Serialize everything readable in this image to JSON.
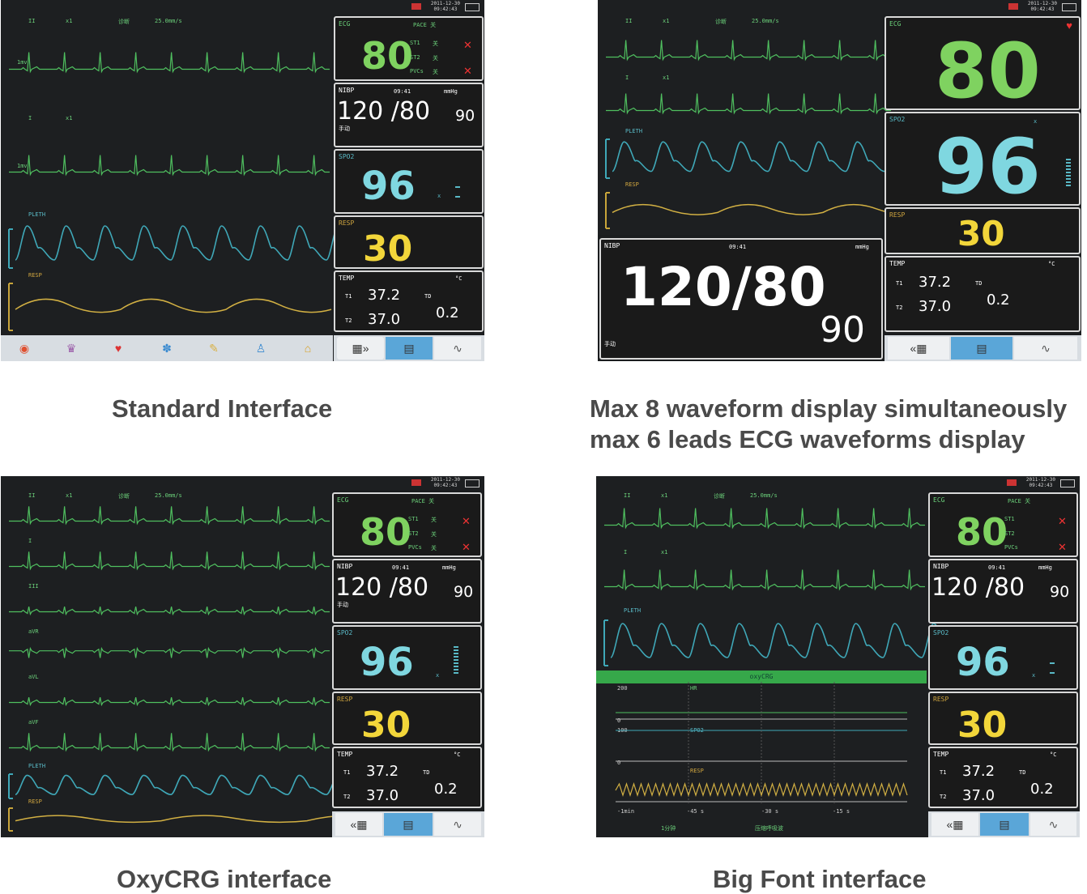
{
  "header": {
    "date": "2011-12-30",
    "time": "09:42:43"
  },
  "standard": {
    "wave_labels": [
      "II",
      "x1",
      "诊断",
      "25.0mm/s",
      "I",
      "x1",
      "PLETH",
      "RESP"
    ],
    "lead_scale": "1mv",
    "ecg": {
      "title": "ECG",
      "pace": "PACE 关",
      "hr": "80",
      "st1": "ST1",
      "st2": "ST2",
      "pvcs": "PVCs",
      "st1_val": "关",
      "st2_val": "关",
      "pvcs_val": "关"
    },
    "nibp": {
      "title": "NIBP",
      "time": "09:41",
      "unit": "mmHg",
      "sys_dia": "120 /80",
      "mean": "90",
      "mode": "手动"
    },
    "spo2": {
      "title": "SPO2",
      "value": "96",
      "pr": "x"
    },
    "resp": {
      "title": "RESP",
      "value": "30"
    },
    "temp": {
      "title": "TEMP",
      "unit": "°C",
      "t1_label": "T1",
      "t1": "37.2",
      "t2_label": "T2",
      "t2": "37.0",
      "td_label": "TD",
      "td": "0.2"
    }
  },
  "max8": {
    "big_hr": "80",
    "big_spo2": "96",
    "resp": "30",
    "nibp": "120/80",
    "mean": "90",
    "mode": "手动"
  },
  "oxycrg": {
    "lead_labels": [
      "II",
      "I",
      "III",
      "aVR",
      "aVL",
      "aVF",
      "PLETH",
      "RESP"
    ]
  },
  "bigfont": {
    "oxycrg_bar": "oxyCRG",
    "scale_top": "200",
    "hr_lbl": "HR",
    "zero1": "0",
    "scale2": "100",
    "spo2_lbl": "SPO2",
    "zero2": "0",
    "resp_lbl": "RESP",
    "ticks": [
      "-1min",
      "-45 s",
      "-30 s",
      "-15 s"
    ],
    "bottom": [
      "1分钟",
      "压缩呼吸波"
    ]
  },
  "captions": {
    "standard": "Standard Interface",
    "max8_line1": "Max 8 waveform display simultaneously",
    "max8_line2": "max 6 leads ECG waveforms display",
    "oxycrg": "OxyCRG interface",
    "bigfont": "Big Font interface"
  },
  "colors": {
    "ecg_green": "#6bd07a",
    "spo2_cyan": "#7fd7e0",
    "resp_yellow": "#f2d63a",
    "temp_white": "#ffffff",
    "background": "#1b1d1f"
  }
}
